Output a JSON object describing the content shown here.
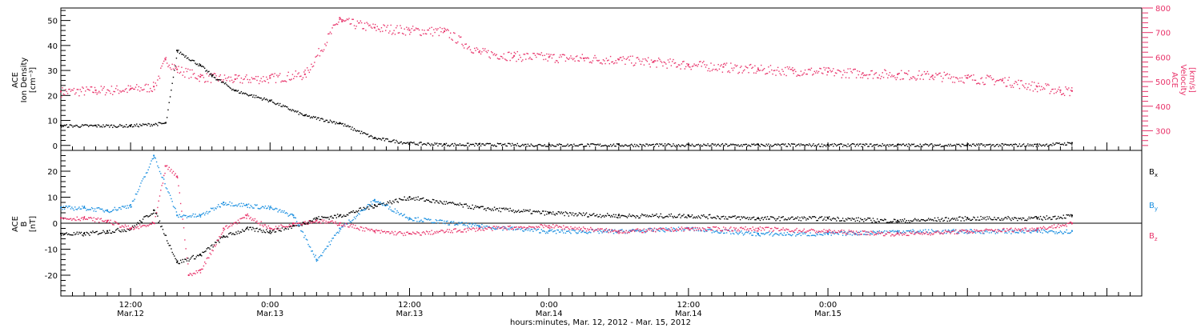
{
  "chart_data": [
    {
      "type": "scatter",
      "panel": "top",
      "left_axis": {
        "label_lines": [
          "ACE",
          "Ion Density",
          "[cm⁻³]"
        ],
        "ylim": [
          -2,
          55
        ],
        "ticks": [
          0,
          10,
          20,
          30,
          40,
          50
        ],
        "color": "#000000"
      },
      "right_axis": {
        "label_lines": [
          "ACE",
          "Velocity",
          "[km/s]"
        ],
        "ylim": [
          220,
          800
        ],
        "ticks": [
          300,
          400,
          500,
          600,
          700,
          800
        ],
        "color": "#e8336a"
      },
      "series": [
        {
          "name": "Ion Density",
          "axis": "left",
          "color": "#000000",
          "x": [
            0,
            3,
            6,
            9,
            10,
            12,
            13,
            15,
            18,
            21,
            24,
            27,
            30,
            33,
            36,
            42,
            48,
            54,
            60,
            66,
            72,
            78,
            84,
            87
          ],
          "y": [
            8,
            8,
            8,
            9,
            38,
            32,
            28,
            22,
            18,
            12,
            9,
            3,
            1,
            0.5,
            0.5,
            0.3,
            0.3,
            0.3,
            0.3,
            0.3,
            0.3,
            0.3,
            0.3,
            1
          ]
        },
        {
          "name": "Velocity",
          "axis": "right",
          "color": "#e8336a",
          "x": [
            0,
            3,
            6,
            8,
            9,
            10,
            12,
            15,
            18,
            21,
            24,
            24.2,
            27,
            30,
            33,
            36,
            39,
            42,
            45,
            48,
            51,
            54,
            57,
            60,
            63,
            66,
            69,
            72,
            75,
            78,
            81,
            84,
            86,
            87
          ],
          "y": [
            460,
            465,
            470,
            480,
            590,
            550,
            520,
            510,
            515,
            530,
            760,
            745,
            720,
            710,
            705,
            620,
            605,
            600,
            595,
            590,
            580,
            570,
            560,
            550,
            545,
            540,
            535,
            530,
            525,
            515,
            505,
            480,
            465,
            462
          ]
        }
      ]
    },
    {
      "type": "scatter",
      "panel": "bottom",
      "left_axis": {
        "label_lines": [
          "ACE",
          "B",
          "[nT]"
        ],
        "ylim": [
          -28,
          28
        ],
        "ticks": [
          -20,
          -10,
          0,
          10,
          20
        ],
        "color": "#000000"
      },
      "legend": [
        {
          "label": "B",
          "sub": "x",
          "color": "#000000"
        },
        {
          "label": "B",
          "sub": "y",
          "color": "#1a8fe0"
        },
        {
          "label": "B",
          "sub": "z",
          "color": "#e8336a"
        }
      ],
      "zero_line": true,
      "series": [
        {
          "name": "Bx",
          "color": "#000000",
          "x": [
            0,
            2,
            4,
            6,
            8,
            10,
            12,
            14,
            16,
            18,
            20,
            22,
            24,
            27,
            30,
            36,
            42,
            48,
            54,
            60,
            66,
            72,
            78,
            84,
            87
          ],
          "y": [
            -4,
            -4,
            -3,
            -2,
            5,
            -15,
            -12,
            -5,
            -2,
            -3,
            -1,
            2,
            3,
            7,
            10,
            6,
            4,
            3,
            3,
            2,
            2,
            1,
            2,
            2,
            3
          ]
        },
        {
          "name": "By",
          "color": "#1a8fe0",
          "x": [
            0,
            2,
            4,
            6,
            8,
            10,
            12,
            14,
            16,
            18,
            20,
            22,
            24,
            27,
            30,
            36,
            42,
            48,
            54,
            60,
            66,
            72,
            78,
            84,
            87
          ],
          "y": [
            6,
            6,
            5,
            7,
            26,
            3,
            3,
            8,
            7,
            6,
            3,
            -14,
            -2,
            9,
            2,
            -1,
            -3,
            -3,
            -2,
            -4,
            -4,
            -3,
            -3,
            -3,
            -3
          ]
        },
        {
          "name": "Bz",
          "color": "#e8336a",
          "x": [
            0,
            2,
            4,
            6,
            8,
            9,
            10,
            11,
            12,
            14,
            16,
            18,
            20,
            22,
            24,
            27,
            30,
            36,
            42,
            48,
            54,
            60,
            66,
            72,
            78,
            84,
            87
          ],
          "y": [
            2,
            2,
            1,
            -2,
            0,
            22,
            18,
            -20,
            -18,
            -2,
            3,
            -2,
            0,
            1,
            0,
            -3,
            -4,
            -2,
            -1,
            -3,
            -2,
            -2,
            -3,
            -4,
            -3,
            -2,
            0
          ]
        }
      ]
    }
  ],
  "time_axis": {
    "unit": "hours since Mar. 12, 2012 06:00",
    "xlim": [
      0,
      93
    ],
    "major_ticks": [
      {
        "x": 6,
        "time": "12:00",
        "date": "Mar.12"
      },
      {
        "x": 18,
        "time": "0:00",
        "date": "Mar.13"
      },
      {
        "x": 30,
        "time": "12:00",
        "date": "Mar.13"
      },
      {
        "x": 42,
        "time": "0:00",
        "date": "Mar.14"
      },
      {
        "x": 54,
        "time": "12:00",
        "date": "Mar.14"
      },
      {
        "x": 66,
        "time": "0:00",
        "date": "Mar.15"
      }
    ],
    "title": "hours:minutes, Mar. 12, 2012 - Mar. 15, 2012"
  }
}
